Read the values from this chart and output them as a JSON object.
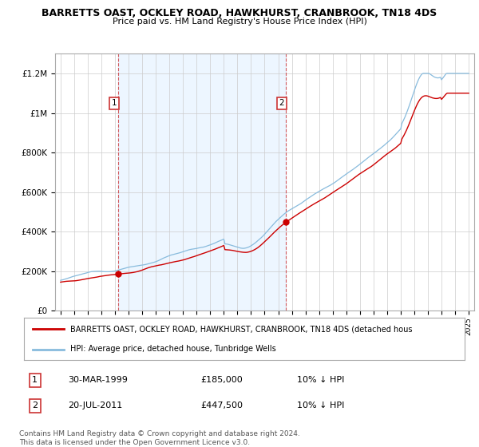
{
  "title": "BARRETTS OAST, OCKLEY ROAD, HAWKHURST, CRANBROOK, TN18 4DS",
  "subtitle": "Price paid vs. HM Land Registry's House Price Index (HPI)",
  "title_fontsize": 9.5,
  "subtitle_fontsize": 8.5,
  "background_color": "#ffffff",
  "plot_background": "#ffffff",
  "grid_color": "#cccccc",
  "red_line_label": "BARRETTS OAST, OCKLEY ROAD, HAWKHURST, CRANBROOK, TN18 4DS (detached hous",
  "blue_line_label": "HPI: Average price, detached house, Tunbridge Wells",
  "annotation1_date": "30-MAR-1999",
  "annotation1_price": "£185,000",
  "annotation1_hpi": "10% ↓ HPI",
  "annotation2_date": "20-JUL-2011",
  "annotation2_price": "£447,500",
  "annotation2_hpi": "10% ↓ HPI",
  "footer": "Contains HM Land Registry data © Crown copyright and database right 2024.\nThis data is licensed under the Open Government Licence v3.0.",
  "ylim": [
    0,
    1300000
  ],
  "yticks": [
    0,
    200000,
    400000,
    600000,
    800000,
    1000000,
    1200000
  ],
  "ytick_labels": [
    "£0",
    "£200K",
    "£400K",
    "£600K",
    "£800K",
    "£1M",
    "£1.2M"
  ],
  "red_color": "#cc0000",
  "blue_color": "#88bbdd",
  "shade_color": "#ddeeff",
  "marker_red": "#cc0000",
  "sale1_year": 1999.25,
  "sale1_price": 185000,
  "sale2_year": 2011.55,
  "sale2_price": 447500
}
